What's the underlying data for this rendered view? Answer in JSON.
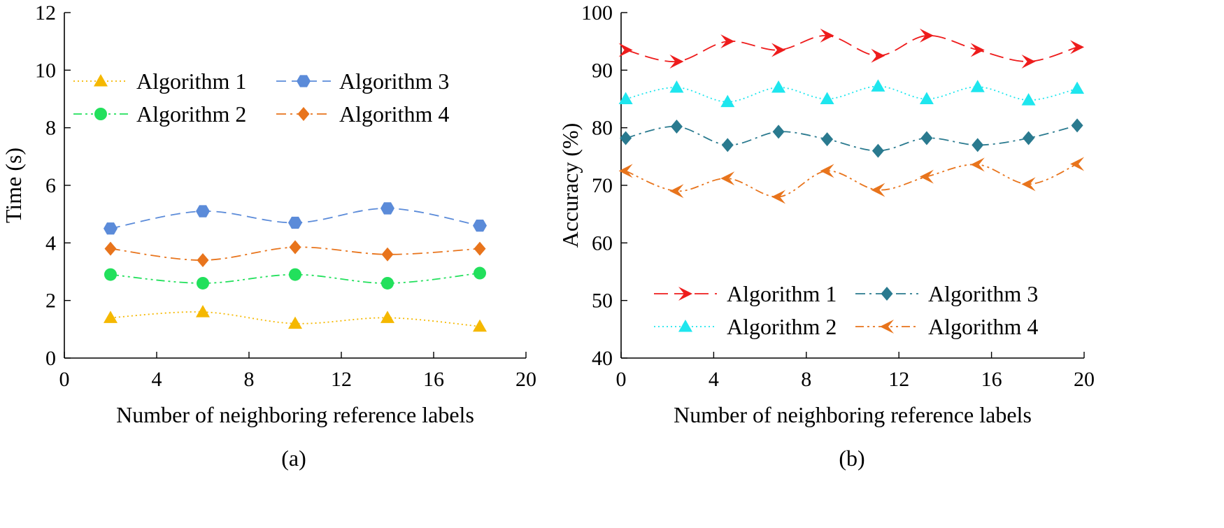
{
  "chart_data": [
    {
      "type": "line",
      "panel": "(a)",
      "title": "",
      "xlabel": "Number of neighboring reference labels",
      "ylabel": "Time (s)",
      "xlim": [
        0,
        20
      ],
      "ylim": [
        0,
        12
      ],
      "xticks": [
        0,
        4,
        8,
        12,
        16,
        20
      ],
      "yticks": [
        0,
        2,
        4,
        6,
        8,
        10,
        12
      ],
      "legend_position": "top-left",
      "series": [
        {
          "name": "Algorithm 1",
          "color": "#f5b800",
          "dash": "dotted",
          "marker": "triangle-up",
          "x": [
            2,
            6,
            10,
            14,
            18
          ],
          "y": [
            1.4,
            1.6,
            1.2,
            1.4,
            1.1
          ]
        },
        {
          "name": "Algorithm 2",
          "color": "#22e05c",
          "dash": "dash-dot-dot",
          "marker": "circle",
          "x": [
            2,
            6,
            10,
            14,
            18
          ],
          "y": [
            2.9,
            2.6,
            2.9,
            2.6,
            2.95
          ]
        },
        {
          "name": "Algorithm 3",
          "color": "#5b8bd9",
          "dash": "dashed",
          "marker": "hexagon",
          "x": [
            2,
            6,
            10,
            14,
            18
          ],
          "y": [
            4.5,
            5.1,
            4.7,
            5.2,
            4.6
          ]
        },
        {
          "name": "Algorithm 4",
          "color": "#e8741c",
          "dash": "dash-dot",
          "marker": "diamond",
          "x": [
            2,
            6,
            10,
            14,
            18
          ],
          "y": [
            3.8,
            3.4,
            3.85,
            3.6,
            3.8
          ]
        }
      ]
    },
    {
      "type": "line",
      "panel": "(b)",
      "title": "",
      "xlabel": "Number of neighboring reference labels",
      "ylabel": "Accuracy (%)",
      "xlim": [
        0,
        20
      ],
      "ylim": [
        40,
        100
      ],
      "xticks": [
        0,
        4,
        8,
        12,
        16,
        20
      ],
      "yticks": [
        40,
        50,
        60,
        70,
        80,
        90,
        100
      ],
      "legend_position": "bottom",
      "series": [
        {
          "name": "Algorithm 1",
          "color": "#ee1c1c",
          "dash": "long-dash",
          "marker": "arrow-right",
          "x": [
            0.2,
            2.4,
            4.6,
            6.8,
            8.9,
            11.1,
            13.2,
            15.4,
            17.6,
            19.7
          ],
          "y": [
            93.5,
            91.5,
            95,
            93.5,
            96,
            92.5,
            96,
            93.5,
            91.5,
            94
          ]
        },
        {
          "name": "Algorithm 2",
          "color": "#1ee6ee",
          "dash": "dotted",
          "marker": "triangle-up",
          "x": [
            0.2,
            2.4,
            4.6,
            6.8,
            8.9,
            11.1,
            13.2,
            15.4,
            17.6,
            19.7
          ],
          "y": [
            85,
            87,
            84.5,
            87,
            85,
            87.2,
            85,
            87.1,
            84.8,
            86.8
          ]
        },
        {
          "name": "Algorithm 3",
          "color": "#2a7a8f",
          "dash": "dash-dot",
          "marker": "diamond",
          "x": [
            0.2,
            2.4,
            4.6,
            6.8,
            8.9,
            11.1,
            13.2,
            15.4,
            17.6,
            19.7
          ],
          "y": [
            78.2,
            80.2,
            77,
            79.3,
            78,
            76,
            78.2,
            77,
            78.2,
            80.4
          ]
        },
        {
          "name": "Algorithm 4",
          "color": "#e8741c",
          "dash": "dash-dot-dot",
          "marker": "arrow-left",
          "x": [
            0.2,
            2.4,
            4.6,
            6.8,
            8.9,
            11.1,
            13.2,
            15.4,
            17.6,
            19.7
          ],
          "y": [
            72.5,
            69,
            71.2,
            68,
            72.5,
            69.2,
            71.5,
            73.6,
            70.2,
            73.7
          ]
        }
      ]
    }
  ]
}
